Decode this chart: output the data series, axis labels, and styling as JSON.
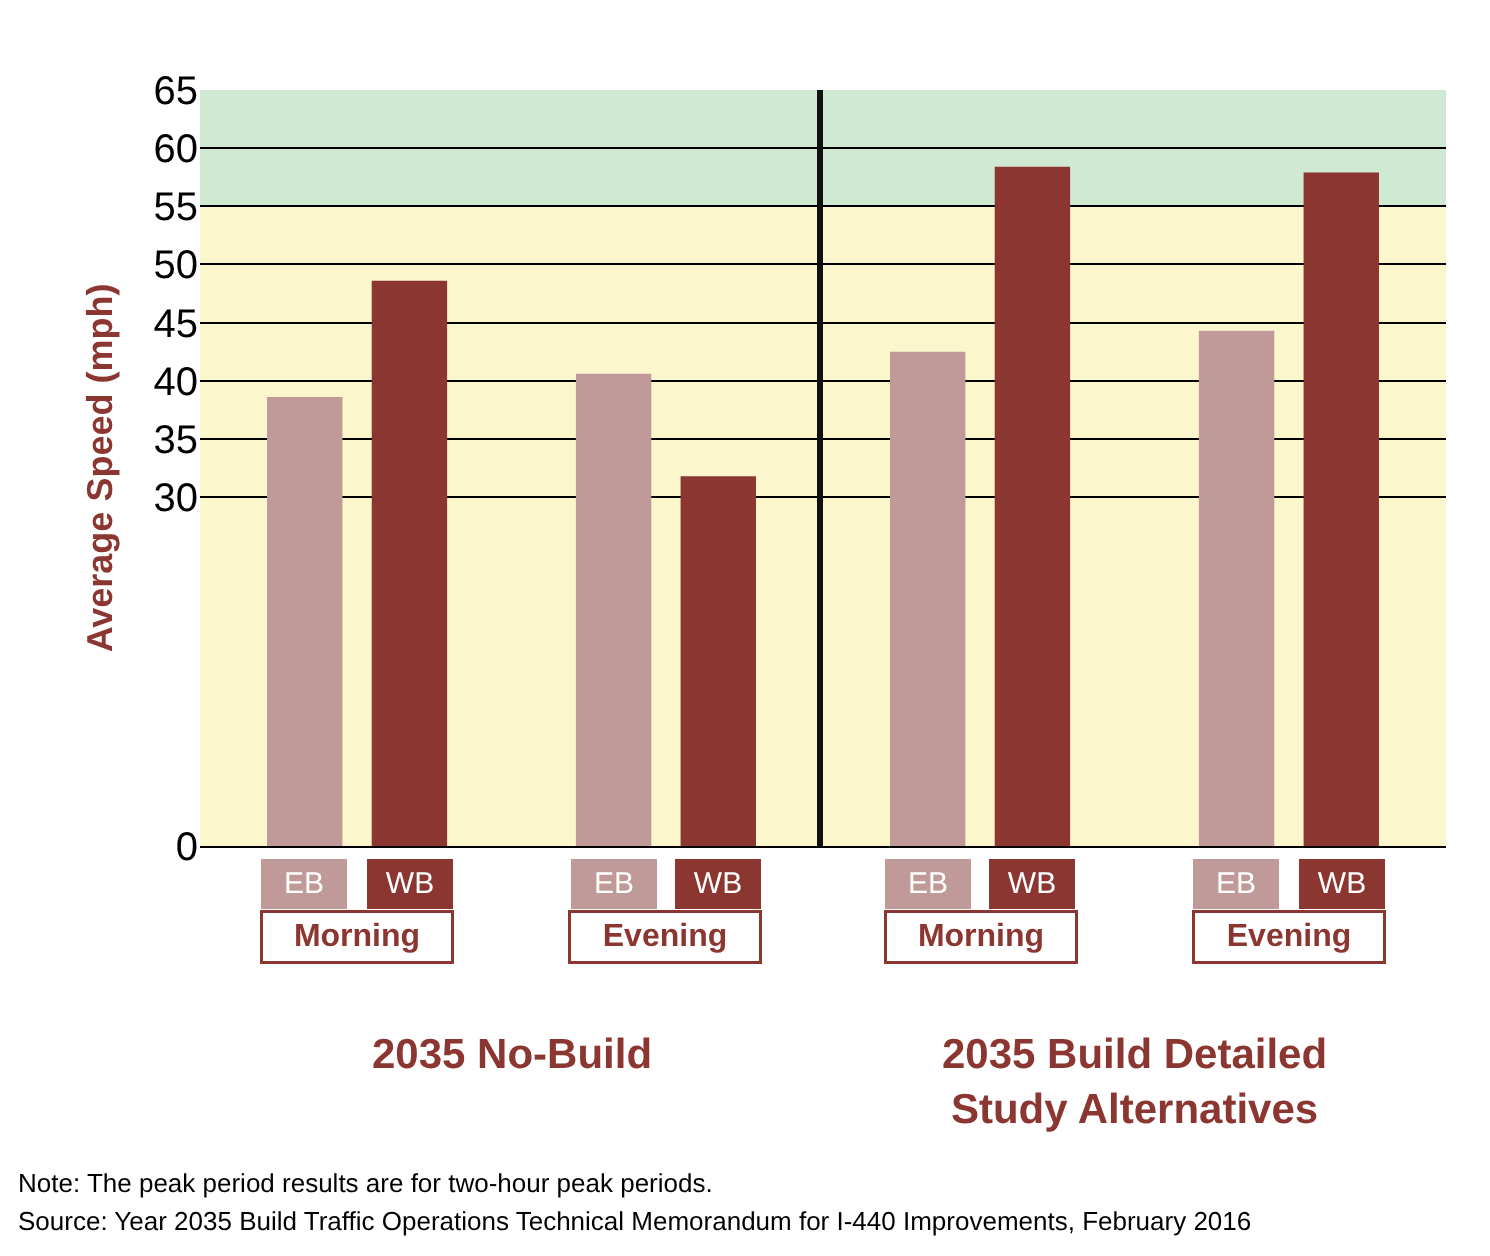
{
  "chart_data": [
    {
      "type": "bar",
      "ylabel": "Average Speed (mph)",
      "categories": [
        "EB",
        "WB",
        "EB",
        "WB"
      ],
      "values": [
        38.6,
        48.6,
        40.6,
        31.8
      ],
      "colors": [
        "#c09a98",
        "#8b3631",
        "#c09a98",
        "#8b3631"
      ],
      "ylim": [
        0,
        65
      ],
      "yticks": [
        0,
        30,
        35,
        40,
        45,
        50,
        55,
        60,
        65
      ],
      "grid": "y",
      "bands": [
        {
          "axis": "y",
          "from": 55,
          "to": 65,
          "color": "#cfe9d3"
        }
      ],
      "annotations": [
        "Morning",
        "Evening",
        "2035 No-Build",
        "Note: The peak period results are for two-hour peak periods.",
        "Source: Year 2035 Build Traffic Operations Technical Memorandum for I-440 Improvements, February 2016"
      ]
    },
    {
      "type": "bar",
      "categories": [
        "EB",
        "WB",
        "EB",
        "WB"
      ],
      "values": [
        42.5,
        58.4,
        44.3,
        57.9
      ],
      "colors": [
        "#c09a98",
        "#8b3631",
        "#c09a98",
        "#8b3631"
      ],
      "ylim": [
        0,
        65
      ],
      "yticks": [
        0,
        30,
        35,
        40,
        45,
        50,
        55,
        60,
        65
      ],
      "tick_labels": "x",
      "grid": "y",
      "bands": [
        {
          "axis": "y",
          "from": 55,
          "to": 65,
          "color": "#cfe9d3"
        }
      ],
      "annotations": [
        "Morning",
        "Evening",
        "2035 Build Detailed\nStudy Alternatives"
      ]
    }
  ]
}
